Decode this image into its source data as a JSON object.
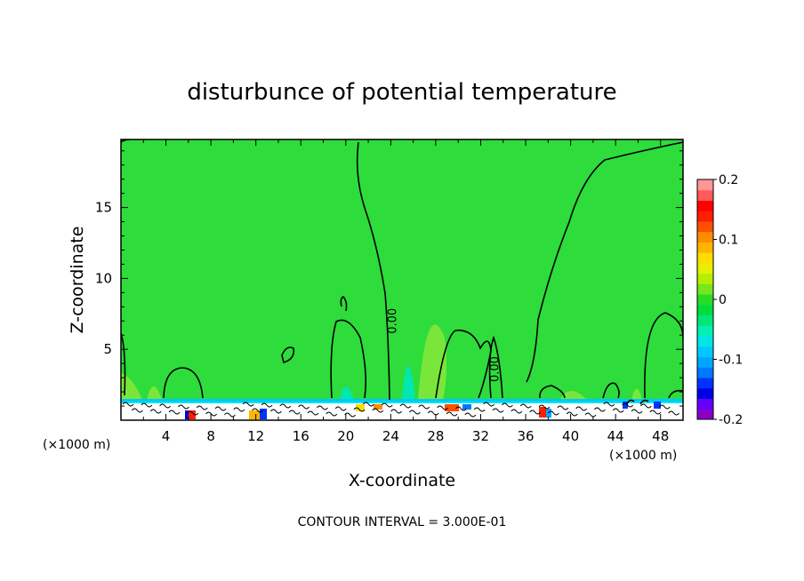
{
  "chart_data": {
    "type": "heatmap",
    "title": "disturbunce of potential temperature",
    "xlabel": "X-coordinate",
    "ylabel": "Z-coordinate",
    "x_unit_left": "(×1000 m)",
    "x_unit_right": "(×1000 m)",
    "footer": "CONTOUR INTERVAL = 3.000E-01",
    "xlim": [
      0,
      50
    ],
    "ylim": [
      0,
      19.8
    ],
    "x_ticks": [
      4,
      8,
      12,
      16,
      20,
      24,
      28,
      32,
      36,
      40,
      44,
      48
    ],
    "y_ticks": [
      5,
      10,
      15
    ],
    "contour_labels": [
      {
        "text": "0.00",
        "x": 24.5,
        "y": 7.0
      },
      {
        "text": "0.00",
        "x": 33.6,
        "y": 3.6
      }
    ],
    "colorbar": {
      "range": [
        -0.2,
        0.2
      ],
      "tick_labels": [
        "0.2",
        "0.1",
        "0",
        "-0.1",
        "-0.2"
      ],
      "tick_values": [
        0.2,
        0.1,
        0,
        -0.1,
        -0.2
      ],
      "colors": [
        "#8b00c8",
        "#6400ff",
        "#0000e6",
        "#0032ff",
        "#0078ff",
        "#00a5ff",
        "#00c8ff",
        "#00e6e6",
        "#00f0b4",
        "#00e678",
        "#00dc3c",
        "#28dc28",
        "#78e61e",
        "#b4f000",
        "#e6f000",
        "#ffdc00",
        "#ffb400",
        "#ff8c00",
        "#ff5000",
        "#ff1e00",
        "#ff0000",
        "#ff5a5a",
        "#ff9696"
      ]
    },
    "colors": {
      "field_background": "#2edc3c",
      "near_zero_light": "#7ae63a",
      "cool_anomaly": "#00e8b0",
      "contour_line": "#000000"
    }
  }
}
